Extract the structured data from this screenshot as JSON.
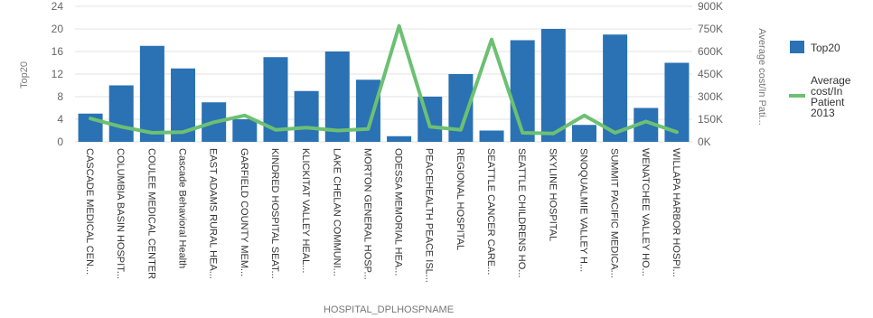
{
  "chart_data": {
    "type": "bar",
    "xlabel": "HOSPITAL_DPLHOSPNAME",
    "ylabel": "Top20",
    "y2label": "Average cost/In Pati...",
    "ylim": [
      0,
      24
    ],
    "y2lim": [
      0,
      900000
    ],
    "yticks": [
      "0",
      "4",
      "8",
      "12",
      "16",
      "20",
      "24"
    ],
    "y2ticks": [
      "0K",
      "150K",
      "300K",
      "450K",
      "600K",
      "750K",
      "900K"
    ],
    "categories": [
      "CASCADE MEDICAL CEN...",
      "COLUMBIA BASIN HOSPIT...",
      "COULEE MEDICAL CENTER",
      "Cascade Behavioral Health",
      "EAST ADAMS RURAL HEA...",
      "GARFIELD COUNTY MEM...",
      "KINDRED HOSPITAL SEAT...",
      "KLICKITAT VALLEY HEAL...",
      "LAKE CHELAN COMMUNI...",
      "MORTON GENERAL HOSP...",
      "ODESSA MEMORIAL HEA...",
      "PEACEHEALTH PEACE ISL...",
      "REGIONAL HOSPITAL",
      "SEATTLE CANCER CARE...",
      "SEATTLE CHILDRENS HO...",
      "SKYLINE HOSPITAL",
      "SNOQUALMIE VALLEY H...",
      "SUMMIT PACIFIC MEDICA...",
      "WENATCHEE VALLEY HO...",
      "WILLAPA HARBOR HOSPI..."
    ],
    "series": [
      {
        "name": "Top20",
        "type": "bar",
        "axis": "left",
        "color": "#2a72b4",
        "values": [
          5,
          10,
          17,
          13,
          7,
          4,
          15,
          9,
          16,
          11,
          1,
          8,
          12,
          2,
          18,
          20,
          3,
          19,
          6,
          14
        ]
      },
      {
        "name": "Average cost/In Patient 2013",
        "type": "line",
        "axis": "right",
        "color": "#6cc072",
        "values": [
          155000,
          100000,
          60000,
          65000,
          130000,
          175000,
          80000,
          95000,
          75000,
          85000,
          770000,
          100000,
          80000,
          680000,
          60000,
          55000,
          175000,
          60000,
          135000,
          65000
        ]
      }
    ],
    "legend": [
      "Top20",
      "Average\ncost/In\nPatient\n2013"
    ],
    "legend_position": "right",
    "grid": true
  }
}
